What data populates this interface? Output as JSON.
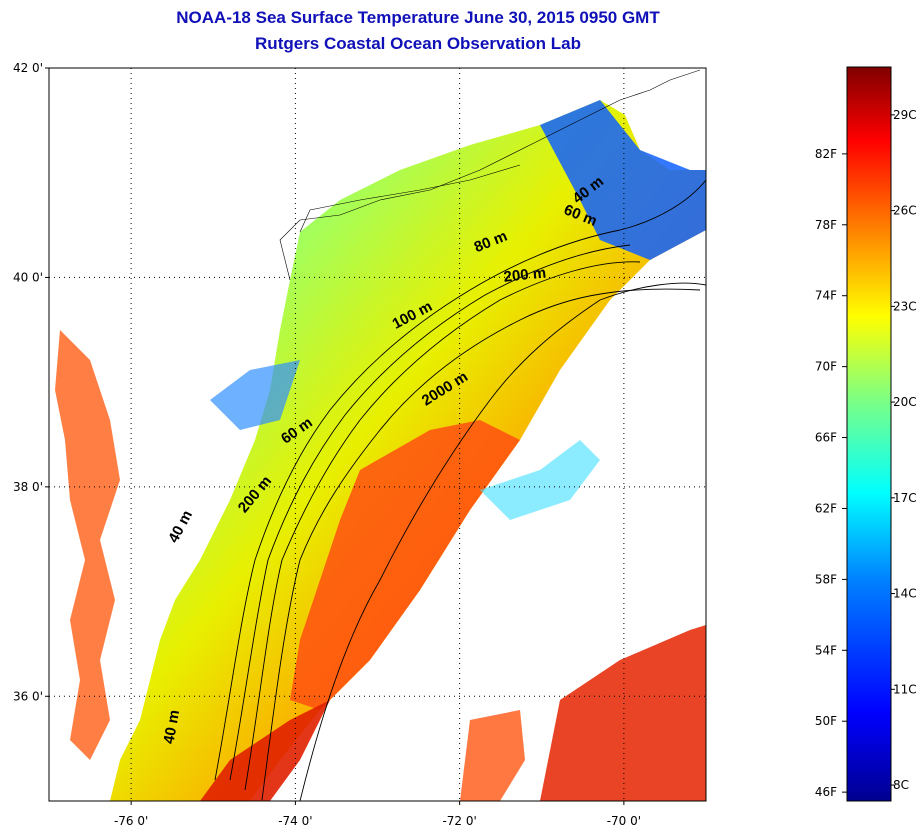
{
  "title_line1": "NOAA-18 Sea Surface Temperature June 30, 2015 0950 GMT",
  "title_line2": "Rutgers Coastal Ocean Observation Lab",
  "map": {
    "lat_ticks": [
      {
        "value": 42,
        "label": "42 0'"
      },
      {
        "value": 40,
        "label": "40 0'"
      },
      {
        "value": 38,
        "label": "38 0'"
      },
      {
        "value": 36,
        "label": "36 0'"
      }
    ],
    "lon_ticks": [
      {
        "value": -76,
        "label": "-76 0'"
      },
      {
        "value": -74,
        "label": "-74 0'"
      },
      {
        "value": -72,
        "label": "-72 0'"
      },
      {
        "value": -70,
        "label": "-70 0'"
      }
    ],
    "lat_range": [
      35,
      42
    ],
    "lon_range": [
      -77,
      -69
    ],
    "grid": "dotted",
    "contour_labels": [
      {
        "text": "40 m",
        "lon": -70.4,
        "lat": 40.8,
        "angle": -38
      },
      {
        "text": "60 m",
        "lon": -70.55,
        "lat": 40.55,
        "angle": 22
      },
      {
        "text": "80 m",
        "lon": -71.6,
        "lat": 40.3,
        "angle": -22
      },
      {
        "text": "200 m",
        "lon": -71.2,
        "lat": 39.98,
        "angle": -6
      },
      {
        "text": "100 m",
        "lon": -72.55,
        "lat": 39.6,
        "angle": -28
      },
      {
        "text": "2000 m",
        "lon": -72.15,
        "lat": 38.9,
        "angle": -32
      },
      {
        "text": "60 m",
        "lon": -73.95,
        "lat": 38.5,
        "angle": -35
      },
      {
        "text": "200 m",
        "lon": -74.45,
        "lat": 37.9,
        "angle": -50
      },
      {
        "text": "40 m",
        "lon": -75.35,
        "lat": 37.6,
        "angle": -62
      },
      {
        "text": "40 m",
        "lon": -75.45,
        "lat": 35.7,
        "angle": -80
      }
    ]
  },
  "colorbar": {
    "f_labels": [
      "82F",
      "78F",
      "74F",
      "70F",
      "66F",
      "62F",
      "58F",
      "54F",
      "50F",
      "46F"
    ],
    "c_labels": [
      "29C",
      "26C",
      "23C",
      "20C",
      "17C",
      "14C",
      "11C",
      "8C"
    ],
    "min_c": 7.5,
    "max_c": 30.5,
    "colors": [
      "#00008f",
      "#0000ff",
      "#0080ff",
      "#00ffff",
      "#80ff80",
      "#ffff00",
      "#ff8000",
      "#ff0000",
      "#800000"
    ]
  }
}
